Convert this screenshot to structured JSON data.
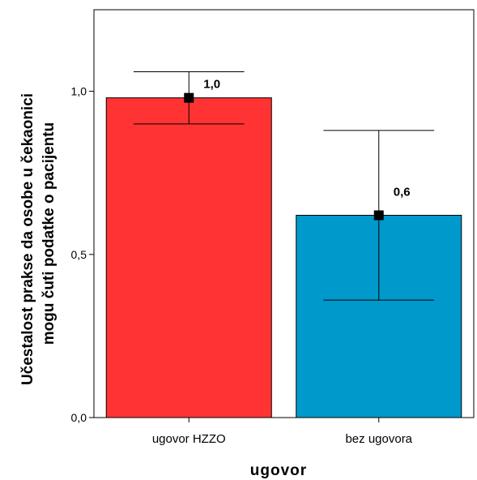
{
  "chart_data": {
    "type": "bar",
    "categories": [
      "ugovor HZZO",
      "bez ugovora"
    ],
    "values": [
      0.98,
      0.62
    ],
    "data_labels": [
      "1,0",
      "0,6"
    ],
    "error_bars": [
      {
        "low": 0.9,
        "high": 1.06
      },
      {
        "low": 0.36,
        "high": 0.88
      }
    ],
    "colors": [
      "#ff3333",
      "#0099cc"
    ],
    "ylim": [
      0,
      1.25
    ],
    "yticks": [
      0,
      0.5,
      1.0
    ],
    "ytick_labels": [
      "0,0",
      "0,5",
      "1,0"
    ],
    "ylabel_line1": "Učestalost prakse da osobe u čekaonici",
    "ylabel_line2": "mogu čuti podatke o pacijentu",
    "xlabel": "ugovor",
    "grid": false
  }
}
